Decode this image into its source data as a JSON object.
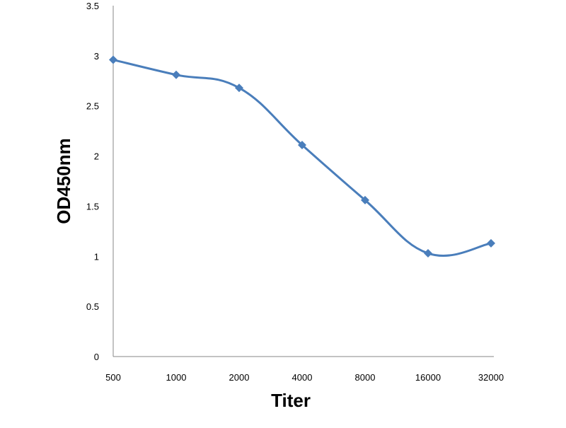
{
  "chart_data": {
    "type": "line",
    "title": "",
    "xlabel": "Titer",
    "ylabel": "OD450nm",
    "categories": [
      "500",
      "1000",
      "2000",
      "4000",
      "8000",
      "16000",
      "32000"
    ],
    "series": [
      {
        "values": [
          2.96,
          2.81,
          2.68,
          2.11,
          1.56,
          1.03,
          1.13
        ],
        "color": "#4a7ebb",
        "marker": "diamond",
        "smooth": true
      }
    ],
    "ylim": [
      0,
      3.5
    ],
    "yticks": [
      "0",
      "0.5",
      "1",
      "1.5",
      "2",
      "2.5",
      "3",
      "3.5"
    ],
    "grid": false,
    "legend": "none"
  }
}
